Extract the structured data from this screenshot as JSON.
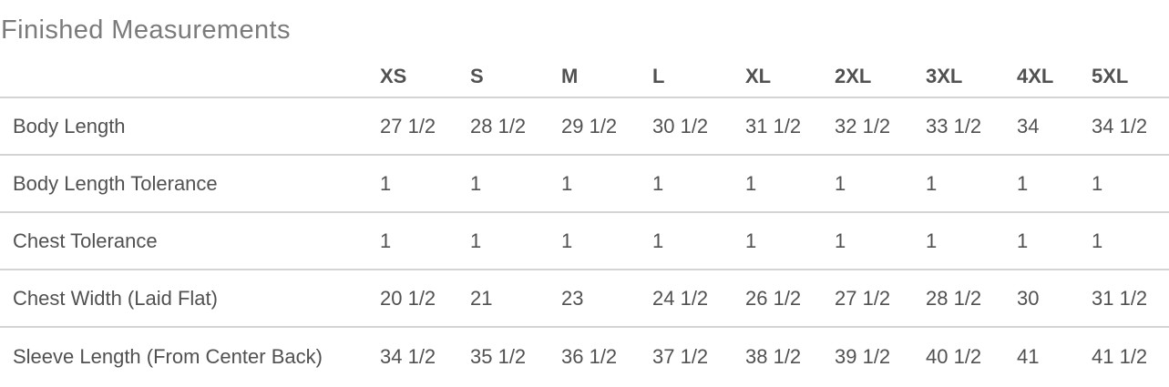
{
  "title": "Finished Measurements",
  "table": {
    "size_headers": [
      "XS",
      "S",
      "M",
      "L",
      "XL",
      "2XL",
      "3XL",
      "4XL",
      "5XL"
    ],
    "rows": [
      {
        "label": "Body Length",
        "values": [
          "27 1/2",
          "28 1/2",
          "29 1/2",
          "30 1/2",
          "31 1/2",
          "32 1/2",
          "33 1/2",
          "34",
          "34 1/2"
        ]
      },
      {
        "label": "Body Length Tolerance",
        "values": [
          "1",
          "1",
          "1",
          "1",
          "1",
          "1",
          "1",
          "1",
          "1"
        ]
      },
      {
        "label": "Chest Tolerance",
        "values": [
          "1",
          "1",
          "1",
          "1",
          "1",
          "1",
          "1",
          "1",
          "1"
        ]
      },
      {
        "label": "Chest Width (Laid Flat)",
        "values": [
          "20 1/2",
          "21",
          "23",
          "24 1/2",
          "26 1/2",
          "27 1/2",
          "28 1/2",
          "30",
          "31 1/2"
        ]
      },
      {
        "label": "Sleeve Length (From Center Back)",
        "values": [
          "34 1/2",
          "35 1/2",
          "36 1/2",
          "37 1/2",
          "38 1/2",
          "39 1/2",
          "40 1/2",
          "41",
          "41 1/2"
        ]
      }
    ]
  },
  "colors": {
    "title_text": "#7b7b7b",
    "header_text": "#767676",
    "cell_text": "#515151",
    "divider": "#d4d4d4"
  }
}
